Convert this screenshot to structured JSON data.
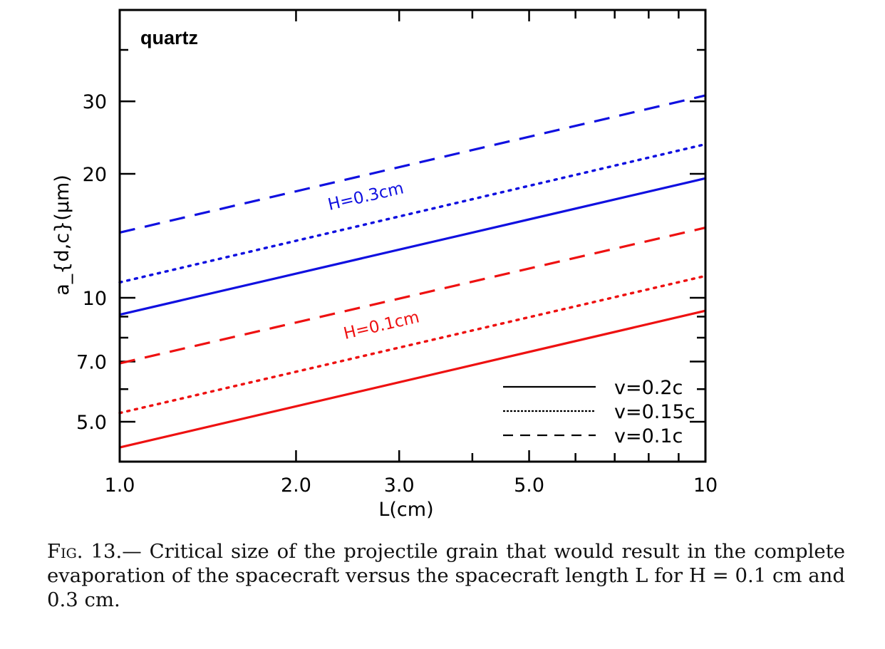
{
  "chart_data": {
    "type": "line",
    "annotation": "quartz",
    "xlabel": "L(cm)",
    "ylabel": "a_{d,c}(μm)",
    "xscale": "log",
    "yscale": "log",
    "xlim": [
      1,
      10
    ],
    "ylim": [
      4,
      50
    ],
    "xticks": [
      1,
      2,
      3,
      5,
      10
    ],
    "xtick_labels": [
      "1.0",
      "2.0",
      "3.0",
      "5.0",
      "10"
    ],
    "yticks": [
      5,
      7,
      10,
      20,
      30
    ],
    "ytick_labels": [
      "5.0",
      "7.0",
      "10",
      "20",
      "30"
    ],
    "grid": false,
    "legend_position": "bottom-right",
    "legend": [
      {
        "label": "v=0.2c",
        "style": "solid"
      },
      {
        "label": "v=0.15c",
        "style": "dotted"
      },
      {
        "label": "v=0.1c",
        "style": "dashed"
      }
    ],
    "group_labels": [
      {
        "text": "H=0.3cm",
        "color": "#1010e0"
      },
      {
        "text": "H=0.1cm",
        "color": "#ee1111"
      }
    ],
    "series": [
      {
        "group": "H=0.3cm",
        "velocity": "v=0.2c",
        "style": "solid",
        "color": "#1010e0",
        "x": [
          1,
          10
        ],
        "y": [
          9.1,
          19.5
        ]
      },
      {
        "group": "H=0.3cm",
        "velocity": "v=0.15c",
        "style": "dotted",
        "color": "#1010e0",
        "x": [
          1,
          10
        ],
        "y": [
          10.9,
          23.6
        ]
      },
      {
        "group": "H=0.3cm",
        "velocity": "v=0.1c",
        "style": "dashed",
        "color": "#1010e0",
        "x": [
          1,
          10
        ],
        "y": [
          14.4,
          31
        ]
      },
      {
        "group": "H=0.1cm",
        "velocity": "v=0.2c",
        "style": "solid",
        "color": "#ee1111",
        "x": [
          1,
          10
        ],
        "y": [
          4.33,
          9.3
        ]
      },
      {
        "group": "H=0.1cm",
        "velocity": "v=0.15c",
        "style": "dotted",
        "color": "#ee1111",
        "x": [
          1,
          10
        ],
        "y": [
          5.25,
          11.3
        ]
      },
      {
        "group": "H=0.1cm",
        "velocity": "v=0.1c",
        "style": "dashed",
        "color": "#ee1111",
        "x": [
          1,
          10
        ],
        "y": [
          6.93,
          14.8
        ]
      }
    ]
  },
  "caption": {
    "fig_label": "Fig. 13.",
    "text": "— Critical size of the projectile grain that would result in the complete evaporation of the spacecraft versus the spacecraft length L for H = 0.1 cm and 0.3 cm."
  }
}
